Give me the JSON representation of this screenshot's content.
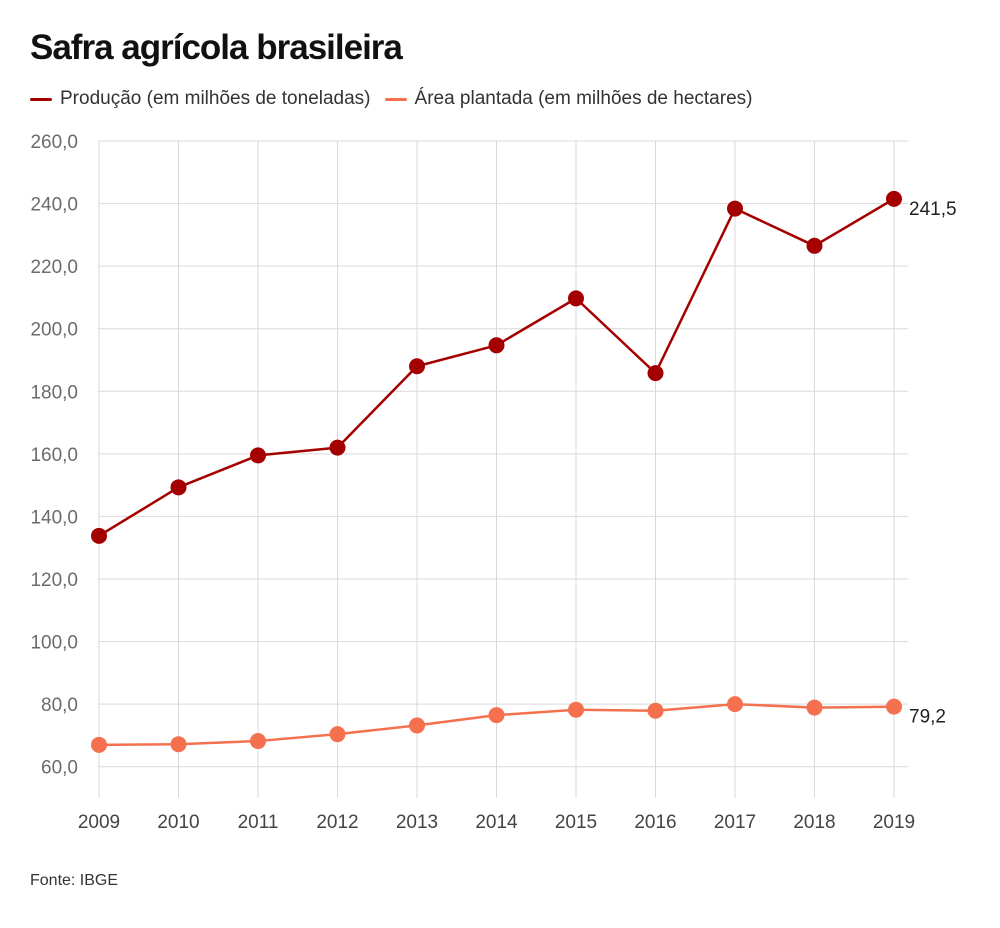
{
  "title": "Safra agrícola brasileira",
  "source": "Fonte: IBGE",
  "colors": {
    "producao": "#a50000",
    "area": "#f4704f",
    "grid": "#d9d9d9",
    "tick_text": "#6b6b6b"
  },
  "chart_data": {
    "type": "line",
    "x": [
      "2009",
      "2010",
      "2011",
      "2012",
      "2013",
      "2014",
      "2015",
      "2016",
      "2017",
      "2018",
      "2019"
    ],
    "ylim": [
      50,
      260
    ],
    "yticks": [
      "60,0",
      "80,0",
      "100,0",
      "120,0",
      "140,0",
      "160,0",
      "180,0",
      "200,0",
      "220,0",
      "240,0",
      "260,0"
    ],
    "ytick_values": [
      60,
      80,
      100,
      120,
      140,
      160,
      180,
      200,
      220,
      240,
      260
    ],
    "grid": true,
    "legend_position": "top-left",
    "series": [
      {
        "name": "Produção (em milhões de toneladas)",
        "color": "#a50000",
        "values": [
          133.8,
          149.3,
          159.5,
          162.0,
          188.0,
          194.7,
          209.7,
          185.8,
          238.4,
          226.5,
          241.5
        ],
        "end_label": "241,5"
      },
      {
        "name": "Área plantada (em milhões de hectares)",
        "color": "#f4704f",
        "values": [
          67.0,
          67.2,
          68.2,
          70.4,
          73.2,
          76.5,
          78.2,
          77.9,
          80.0,
          78.9,
          79.2
        ],
        "end_label": "79,2"
      }
    ]
  }
}
